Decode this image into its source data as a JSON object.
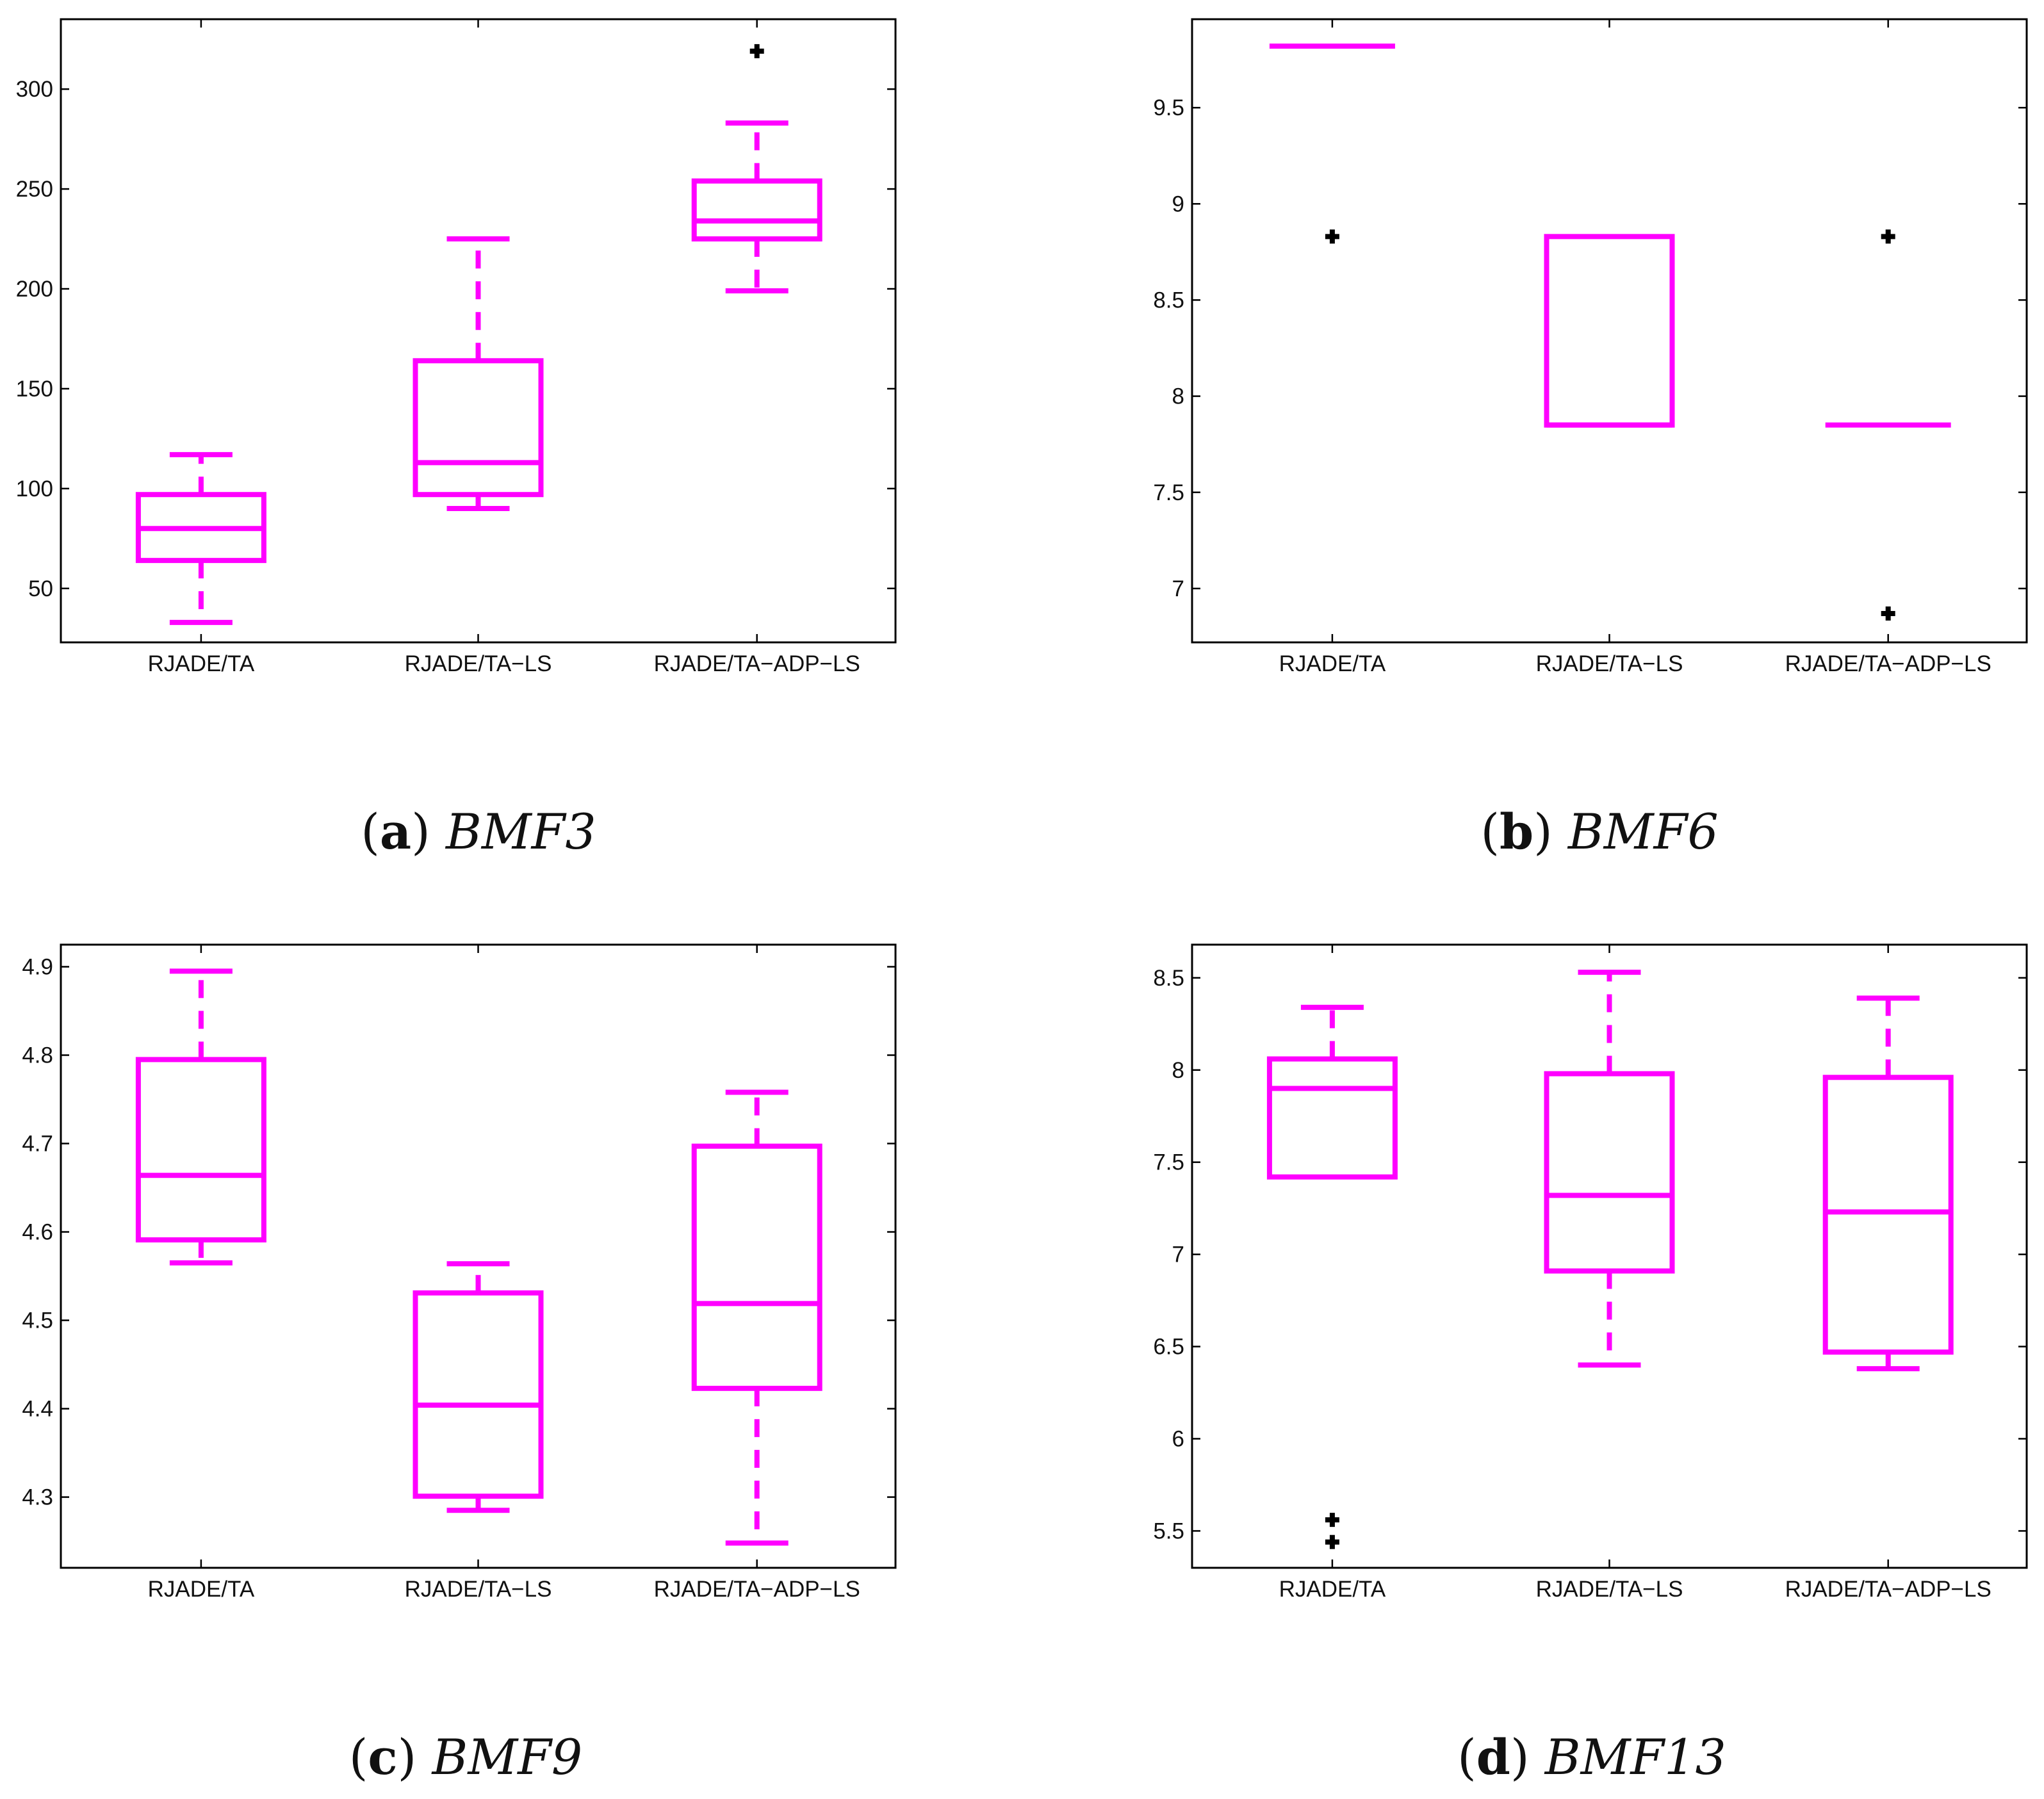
{
  "figure": {
    "box_color": "#ff00ff",
    "outlier_color": "#000000",
    "outlier_symbol": "+"
  },
  "chart_data": [
    {
      "type": "box",
      "caption_letter": "a",
      "caption_name": "BMF3",
      "categories": [
        "RJADE/TA",
        "RJADE/TA−LS",
        "RJADE/TA−ADP−LS"
      ],
      "ylim": [
        23,
        335
      ],
      "yticks": [
        50,
        100,
        150,
        200,
        250,
        300
      ],
      "ytick_labels": [
        "50",
        "100",
        "150",
        "200",
        "250",
        "300"
      ],
      "boxes": [
        {
          "whisker_low": 33,
          "q1": 64,
          "median": 80,
          "q3": 97,
          "whisker_high": 117,
          "outliers": []
        },
        {
          "whisker_low": 90,
          "q1": 97,
          "median": 113,
          "q3": 164,
          "whisker_high": 225,
          "outliers": []
        },
        {
          "whisker_low": 199,
          "q1": 225,
          "median": 234,
          "q3": 254,
          "whisker_high": 283,
          "outliers": [
            319
          ]
        }
      ]
    },
    {
      "type": "box",
      "caption_letter": "b",
      "caption_name": "BMF6",
      "categories": [
        "RJADE/TA",
        "RJADE/TA−LS",
        "RJADE/TA−ADP−LS"
      ],
      "ylim": [
        6.72,
        9.96
      ],
      "yticks": [
        7,
        7.5,
        8,
        8.5,
        9,
        9.5
      ],
      "ytick_labels": [
        "7",
        "7.5",
        "8",
        "8.5",
        "9",
        "9.5"
      ],
      "boxes": [
        {
          "whisker_low": 9.82,
          "q1": 9.82,
          "median": 9.82,
          "q3": 9.82,
          "whisker_high": 9.82,
          "outliers": [
            8.83
          ]
        },
        {
          "whisker_low": 7.85,
          "q1": 7.85,
          "median": 7.85,
          "q3": 8.83,
          "whisker_high": 8.83,
          "outliers": []
        },
        {
          "whisker_low": 7.85,
          "q1": 7.85,
          "median": 7.85,
          "q3": 7.85,
          "whisker_high": 7.85,
          "outliers": [
            8.83,
            6.87
          ]
        }
      ]
    },
    {
      "type": "box",
      "caption_letter": "c",
      "caption_name": "BMF9",
      "categories": [
        "RJADE/TA",
        "RJADE/TA−LS",
        "RJADE/TA−ADP−LS"
      ],
      "ylim": [
        4.22,
        4.925
      ],
      "yticks": [
        4.3,
        4.4,
        4.5,
        4.6,
        4.7,
        4.8,
        4.9
      ],
      "ytick_labels": [
        "4.3",
        "4.4",
        "4.5",
        "4.6",
        "4.7",
        "4.8",
        "4.9"
      ],
      "boxes": [
        {
          "whisker_low": 4.565,
          "q1": 4.591,
          "median": 4.664,
          "q3": 4.795,
          "whisker_high": 4.895,
          "outliers": []
        },
        {
          "whisker_low": 4.285,
          "q1": 4.301,
          "median": 4.404,
          "q3": 4.531,
          "whisker_high": 4.564,
          "outliers": []
        },
        {
          "whisker_low": 4.248,
          "q1": 4.423,
          "median": 4.519,
          "q3": 4.697,
          "whisker_high": 4.758,
          "outliers": []
        }
      ]
    },
    {
      "type": "box",
      "caption_letter": "d",
      "caption_name": "BMF13",
      "categories": [
        "RJADE/TA",
        "RJADE/TA−LS",
        "RJADE/TA−ADP−LS"
      ],
      "ylim": [
        5.3,
        8.68
      ],
      "yticks": [
        5.5,
        6,
        6.5,
        7,
        7.5,
        8,
        8.5
      ],
      "ytick_labels": [
        "5.5",
        "6",
        "6.5",
        "7",
        "7.5",
        "8",
        "8.5"
      ],
      "boxes": [
        {
          "whisker_low": 7.42,
          "q1": 7.42,
          "median": 7.9,
          "q3": 8.06,
          "whisker_high": 8.34,
          "outliers": [
            5.56,
            5.44
          ]
        },
        {
          "whisker_low": 6.4,
          "q1": 6.91,
          "median": 7.32,
          "q3": 7.98,
          "whisker_high": 8.53,
          "outliers": []
        },
        {
          "whisker_low": 6.38,
          "q1": 6.47,
          "median": 7.23,
          "q3": 7.96,
          "whisker_high": 8.39,
          "outliers": []
        }
      ]
    }
  ]
}
